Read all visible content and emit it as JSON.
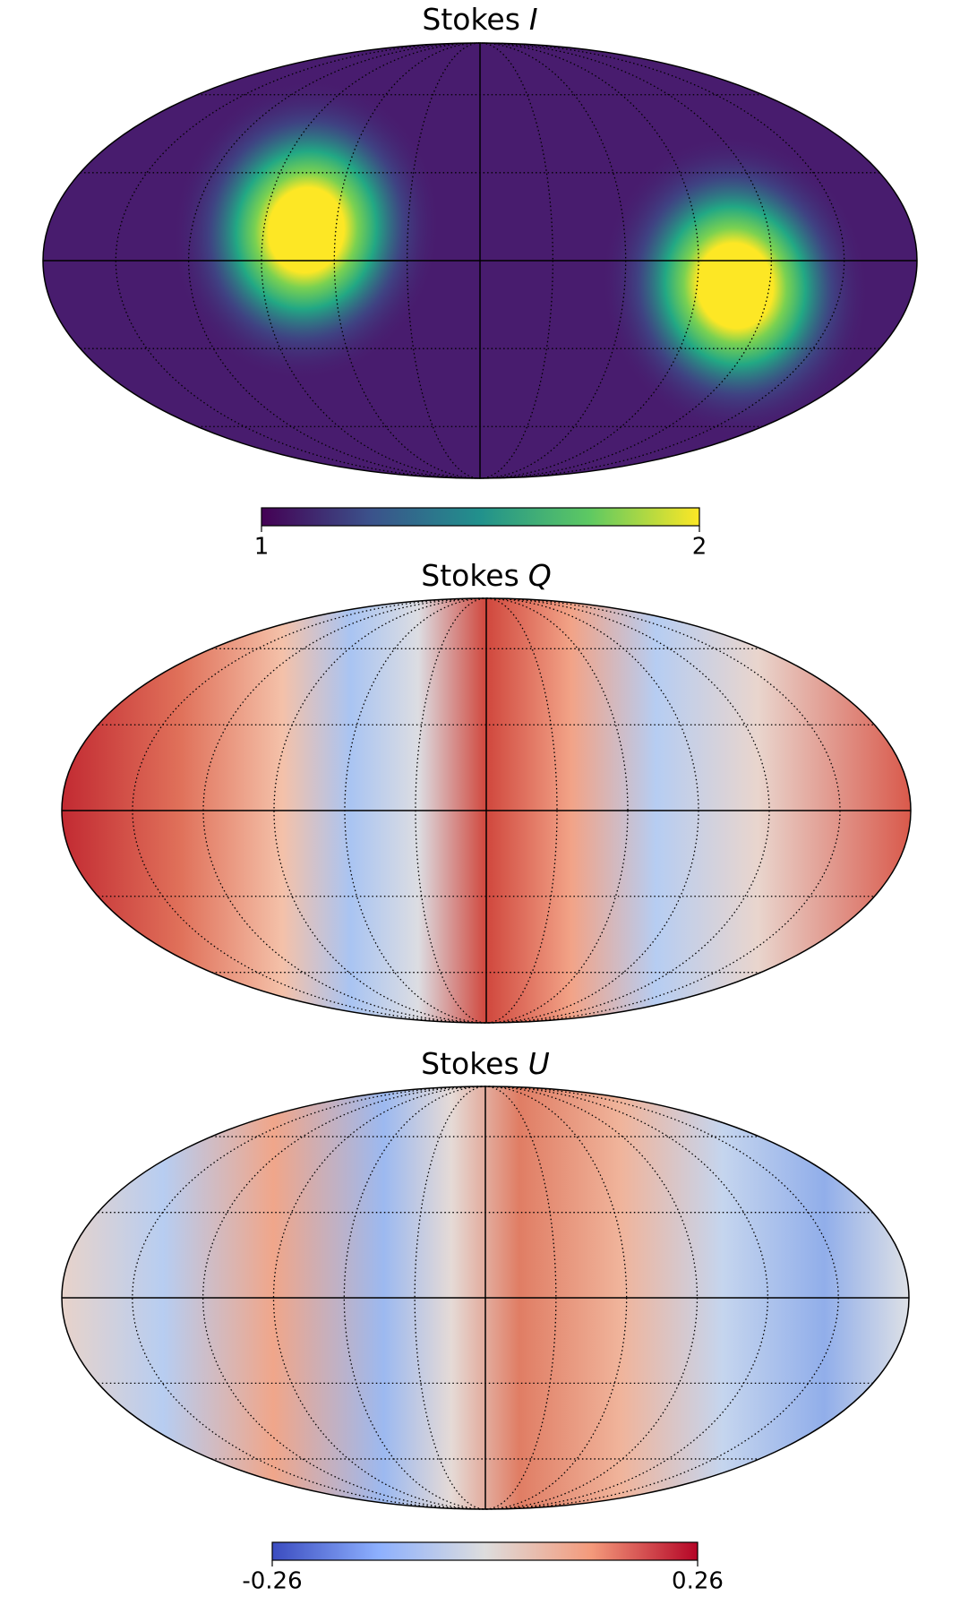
{
  "chart_data": [
    {
      "type": "mollweide",
      "title": {
        "text": "Stokes",
        "symbol": "I"
      },
      "graticule": true,
      "colormap": "viridis",
      "clim": [
        1,
        2
      ],
      "cticks": [
        1,
        2
      ]
    },
    {
      "type": "mollweide",
      "title": {
        "text": "Stokes",
        "symbol": "Q"
      },
      "graticule": true
    },
    {
      "type": "mollweide",
      "title": {
        "text": "Stokes",
        "symbol": "U"
      },
      "graticule": true,
      "colormap": "coolwarm",
      "clim": [
        -0.26,
        0.26
      ],
      "cticks": [
        -0.26,
        0.26
      ]
    }
  ]
}
